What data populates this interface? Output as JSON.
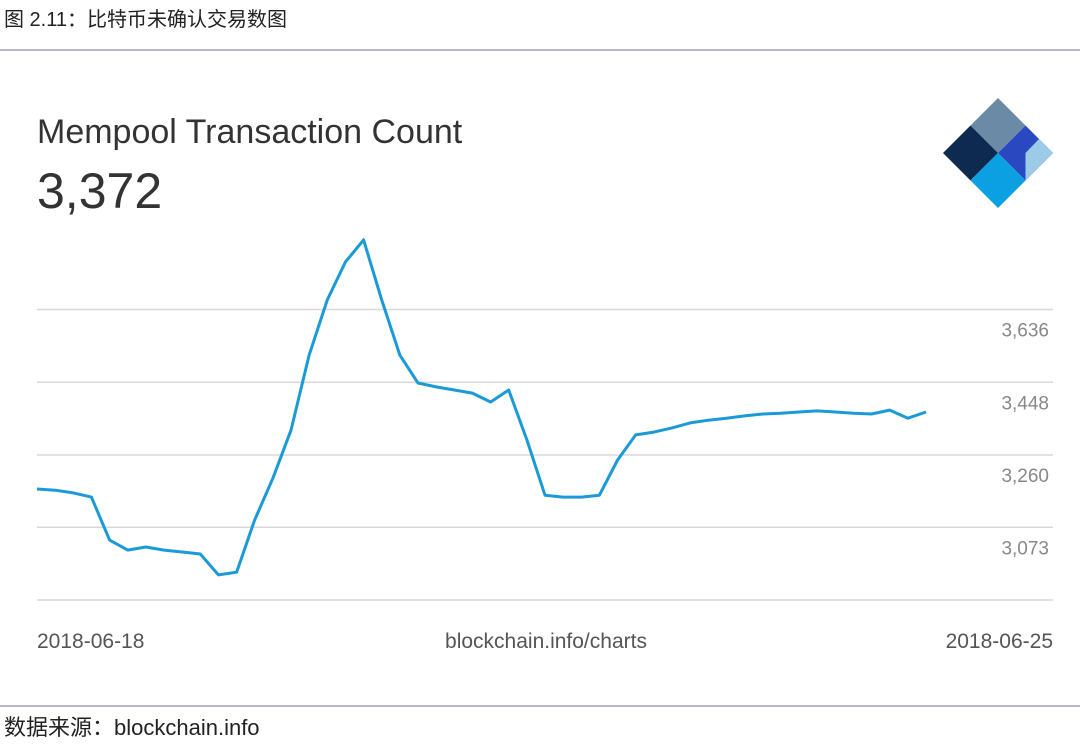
{
  "caption": "图 2.11：比特币未确认交易数图",
  "source": "数据来源：blockchain.info",
  "chart_data": {
    "type": "line",
    "title": "Mempool Transaction Count",
    "headline": "3,372",
    "watermark": "blockchain.info/charts",
    "categories": [
      "2018-06-18",
      null,
      null,
      null,
      null,
      null,
      null,
      null,
      null,
      null,
      null,
      null,
      null,
      null,
      null,
      null,
      null,
      null,
      null,
      null,
      null,
      null,
      null,
      null,
      null,
      null,
      null,
      null,
      null,
      null,
      null,
      null,
      null,
      null,
      null,
      null,
      null,
      null,
      null,
      null,
      null,
      null,
      null,
      null,
      null,
      null,
      null,
      null,
      null,
      null,
      null,
      null,
      null,
      null,
      null,
      null,
      "2018-06-25"
    ],
    "series": [
      {
        "name": "Mempool Transaction Count",
        "color": "#1a9ad6",
        "values": [
          3172,
          3169,
          3162,
          3151,
          3040,
          3014,
          3022,
          3014,
          3009,
          3004,
          2950,
          2957,
          3092,
          3200,
          3324,
          3518,
          3661,
          3759,
          3816,
          3661,
          3518,
          3446,
          3436,
          3428,
          3420,
          3397,
          3428,
          3299,
          3156,
          3151,
          3151,
          3156,
          3247,
          3312,
          3319,
          3330,
          3343,
          3350,
          3355,
          3361,
          3366,
          3368,
          3371,
          3374,
          3371,
          3368,
          3366,
          3376,
          3355,
          3371,
          null,
          null,
          null,
          null,
          null,
          null,
          null
        ]
      }
    ],
    "ylim": [
      2885,
      3821
    ],
    "yticks": [
      {
        "value": 3636,
        "label": "3,636"
      },
      {
        "value": 3448,
        "label": "3,448"
      },
      {
        "value": 3260,
        "label": "3,260"
      },
      {
        "value": 3073,
        "label": "3,073"
      }
    ],
    "grid": true
  }
}
